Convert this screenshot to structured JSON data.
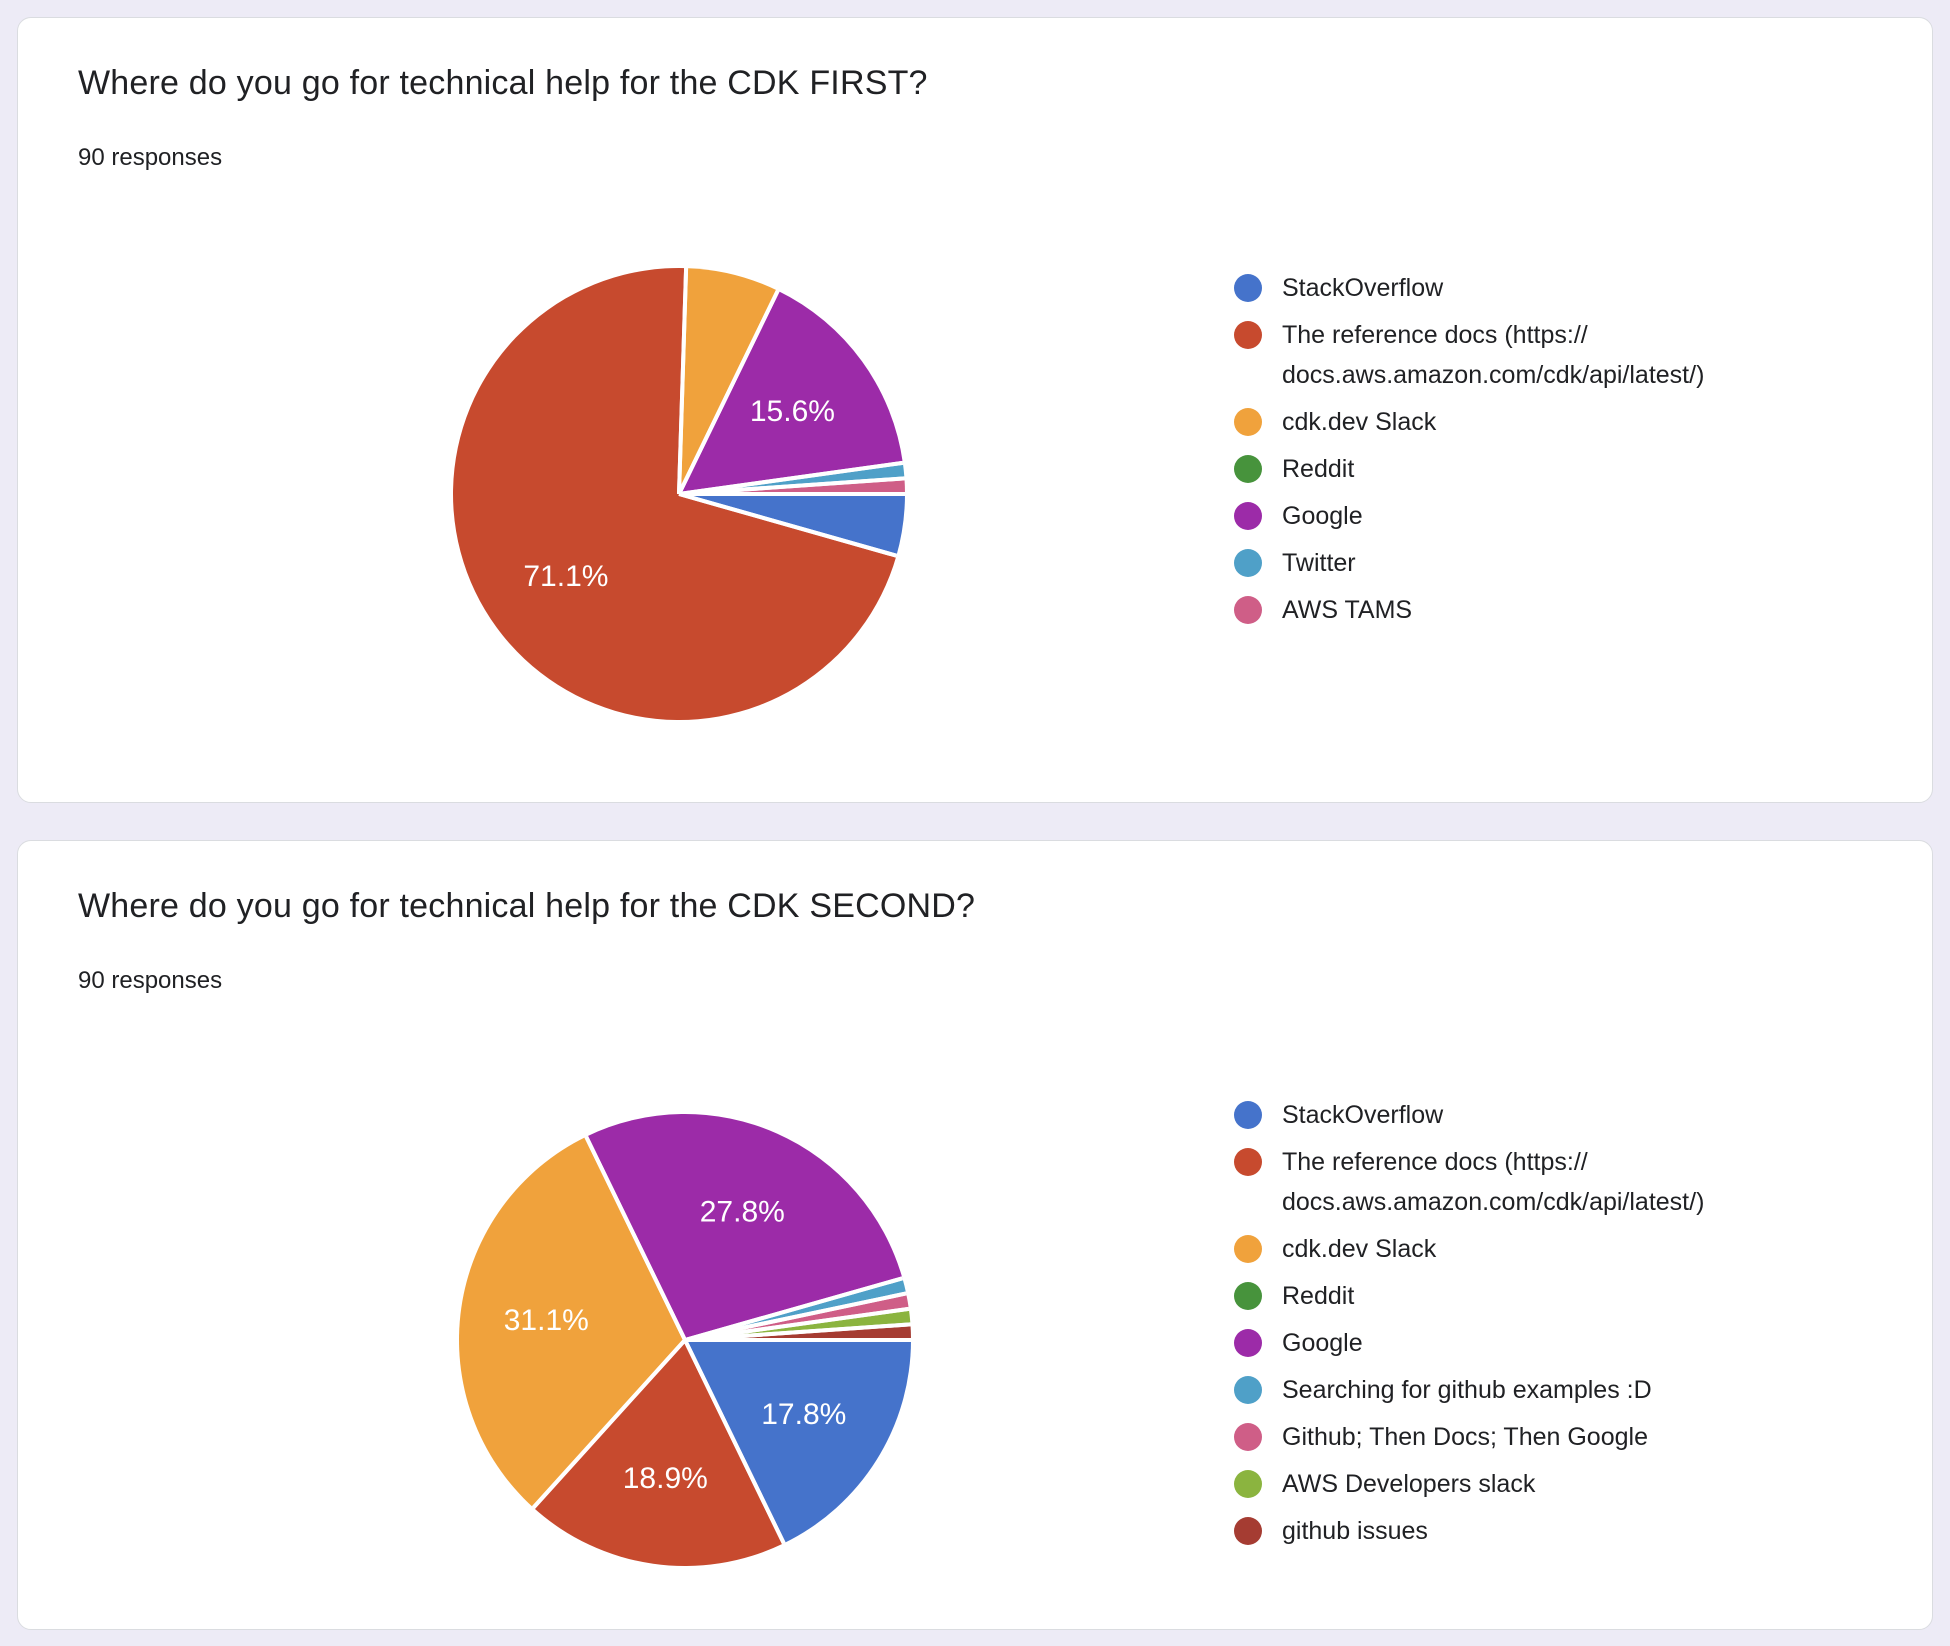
{
  "page": {
    "background_color": "#EDEBF6",
    "card_color": "#FFFFFF",
    "card_border_color": "#DADCE0",
    "percent_label_color": "#FFFFFF",
    "text_color": "#202124"
  },
  "cards": [
    {
      "title": "Where do you go for technical help for the CDK FIRST?",
      "responses": "90 responses"
    },
    {
      "title": "Where do you go for technical help for the CDK SECOND?",
      "responses": "90 responses"
    }
  ],
  "chart_data": [
    {
      "type": "pie",
      "title": "Where do you go for technical help for the CDK FIRST?",
      "subtitle": "90 responses",
      "total_responses": 90,
      "legend_position": "right",
      "start_angle_deg_from_12": 90,
      "direction": "clockwise",
      "slices": [
        {
          "label": "StackOverflow",
          "color": "#4573CB",
          "pct": 4.4,
          "pct_label": null
        },
        {
          "label": "The reference docs (https://docs.aws.amazon.com/cdk/api/latest/)",
          "color": "#C74A2E",
          "pct": 71.1,
          "pct_label": "71.1%"
        },
        {
          "label": "cdk.dev Slack",
          "color": "#F0A23C",
          "pct": 6.7,
          "pct_label": null
        },
        {
          "label": "Reddit",
          "color": "#47933C",
          "pct": 0,
          "pct_label": null
        },
        {
          "label": "Google",
          "color": "#9C2BA8",
          "pct": 15.6,
          "pct_label": "15.6%"
        },
        {
          "label": "Twitter",
          "color": "#4FA0C8",
          "pct": 1.1,
          "pct_label": null
        },
        {
          "label": "AWS TAMS",
          "color": "#CF5E87",
          "pct": 1.1,
          "pct_label": null
        }
      ]
    },
    {
      "type": "pie",
      "title": "Where do you go for technical help for the CDK SECOND?",
      "subtitle": "90 responses",
      "total_responses": 90,
      "legend_position": "right",
      "start_angle_deg_from_12": 90,
      "direction": "clockwise",
      "slices": [
        {
          "label": "StackOverflow",
          "color": "#4573CB",
          "pct": 17.8,
          "pct_label": "17.8%"
        },
        {
          "label": "The reference docs (https://docs.aws.amazon.com/cdk/api/latest/)",
          "color": "#C74A2E",
          "pct": 18.9,
          "pct_label": "18.9%"
        },
        {
          "label": "cdk.dev Slack",
          "color": "#F0A23C",
          "pct": 31.1,
          "pct_label": "31.1%"
        },
        {
          "label": "Reddit",
          "color": "#47933C",
          "pct": 0,
          "pct_label": null
        },
        {
          "label": "Google",
          "color": "#9C2BA8",
          "pct": 27.8,
          "pct_label": "27.8%"
        },
        {
          "label": "Searching for github examples :D",
          "color": "#4FA0C8",
          "pct": 1.1,
          "pct_label": null
        },
        {
          "label": "Github; Then Docs; Then Google",
          "color": "#CF5E87",
          "pct": 1.1,
          "pct_label": null
        },
        {
          "label": "AWS Developers slack",
          "color": "#8BB43F",
          "pct": 1.1,
          "pct_label": null
        },
        {
          "label": "github issues",
          "color": "#A53C32",
          "pct": 1.1,
          "pct_label": null
        }
      ]
    }
  ]
}
